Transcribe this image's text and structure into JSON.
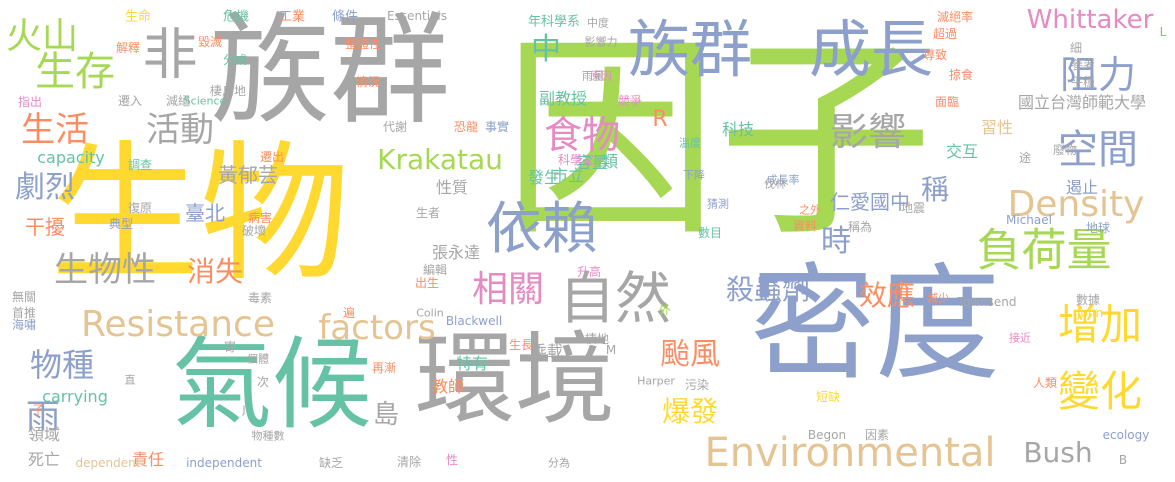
{
  "palette": {
    "gray": "#a6a6a6",
    "yellow": "#ffd92f",
    "green": "#66c2a5",
    "blue": "#8da0cb",
    "lime": "#a6d854",
    "orange": "#fc8d62",
    "pink": "#e78ac3",
    "tan": "#e5c494"
  },
  "words": [
    {
      "text": "因子",
      "color": "lime",
      "weight": 1.0
    },
    {
      "text": "生物",
      "color": "yellow",
      "weight": 0.98
    },
    {
      "text": "族群",
      "color": "gray",
      "weight": 0.96
    },
    {
      "text": "密度",
      "color": "blue",
      "weight": 0.94
    },
    {
      "text": "環境",
      "color": "gray",
      "weight": 0.9
    },
    {
      "text": "氣候",
      "color": "green",
      "weight": 0.9
    },
    {
      "text": "族群",
      "color": "blue",
      "weight": 0.62
    },
    {
      "text": "成長",
      "color": "blue",
      "weight": 0.62
    },
    {
      "text": "非",
      "color": "gray",
      "weight": 0.6
    },
    {
      "text": "依賴",
      "color": "blue",
      "weight": 0.58
    },
    {
      "text": "自然",
      "color": "gray",
      "weight": 0.56
    },
    {
      "text": "負荷量",
      "color": "lime",
      "weight": 0.48
    },
    {
      "text": "空間",
      "color": "blue",
      "weight": 0.46
    },
    {
      "text": "阻力",
      "color": "blue",
      "weight": 0.46
    },
    {
      "text": "增加",
      "color": "yellow",
      "weight": 0.46
    },
    {
      "text": "變化",
      "color": "yellow",
      "weight": 0.46
    },
    {
      "text": "Environmental",
      "color": "tan",
      "weight": 0.46
    },
    {
      "text": "Resistance",
      "color": "tan",
      "weight": 0.44
    },
    {
      "text": "相關",
      "color": "pink",
      "weight": 0.42
    },
    {
      "text": "影響",
      "color": "gray",
      "weight": 0.4
    },
    {
      "text": "食物",
      "color": "pink",
      "weight": 0.4
    },
    {
      "text": "Density",
      "color": "tan",
      "weight": 0.4
    },
    {
      "text": "生存",
      "color": "lime",
      "weight": 0.38
    },
    {
      "text": "火山",
      "color": "lime",
      "weight": 0.38
    },
    {
      "text": "生活",
      "color": "orange",
      "weight": 0.36
    },
    {
      "text": "活動",
      "color": "gray",
      "weight": 0.36
    },
    {
      "text": "生物性",
      "color": "gray",
      "weight": 0.36
    },
    {
      "text": "factors",
      "color": "tan",
      "weight": 0.36
    },
    {
      "text": "Krakatau",
      "color": "lime",
      "weight": 0.34
    },
    {
      "text": "物種",
      "color": "blue",
      "weight": 0.34
    },
    {
      "text": "雨",
      "color": "blue",
      "weight": 0.34
    },
    {
      "text": "颱風",
      "color": "orange",
      "weight": 0.32
    },
    {
      "text": "爆發",
      "color": "yellow",
      "weight": 0.32
    },
    {
      "text": "Bush",
      "color": "gray",
      "weight": 0.32
    },
    {
      "text": "Whittaker",
      "color": "pink",
      "weight": 0.3
    },
    {
      "text": "劇烈",
      "color": "blue",
      "weight": 0.3
    },
    {
      "text": "時",
      "color": "blue",
      "weight": 0.3
    },
    {
      "text": "稱",
      "color": "blue",
      "weight": 0.3
    },
    {
      "text": "中",
      "color": "green",
      "weight": 0.3
    },
    {
      "text": "殺蟲劑",
      "color": "blue",
      "weight": 0.28
    },
    {
      "text": "效應",
      "color": "orange",
      "weight": 0.28
    },
    {
      "text": "消失",
      "color": "orange",
      "weight": 0.26
    },
    {
      "text": "島",
      "color": "gray",
      "weight": 0.24
    },
    {
      "text": "黃郁芸",
      "color": "gray",
      "weight": 0.2
    },
    {
      "text": "干擾",
      "color": "orange",
      "weight": 0.2
    },
    {
      "text": "臺北",
      "color": "blue",
      "weight": 0.2
    },
    {
      "text": "仁愛國中",
      "color": "blue",
      "weight": 0.2
    },
    {
      "text": "R",
      "color": "orange",
      "weight": 0.2
    },
    {
      "text": "科技",
      "color": "green",
      "weight": 0.16
    },
    {
      "text": "教師",
      "color": "orange",
      "weight": 0.16
    },
    {
      "text": "市立",
      "color": "green",
      "weight": 0.16
    },
    {
      "text": "容量",
      "color": "green",
      "weight": 0.16
    },
    {
      "text": "類",
      "color": "green",
      "weight": 0.16
    },
    {
      "text": "發生",
      "color": "green",
      "weight": 0.16
    },
    {
      "text": "副教授",
      "color": "green",
      "weight": 0.16
    },
    {
      "text": "國立台灣師範大學",
      "color": "gray",
      "weight": 0.16
    },
    {
      "text": "習性",
      "color": "tan",
      "weight": 0.16
    },
    {
      "text": "交互",
      "color": "green",
      "weight": 0.16
    },
    {
      "text": "遏止",
      "color": "blue",
      "weight": 0.16
    },
    {
      "text": "領域",
      "color": "gray",
      "weight": 0.16
    },
    {
      "text": "死亡",
      "color": "gray",
      "weight": 0.16
    },
    {
      "text": "責任",
      "color": "orange",
      "weight": 0.16
    },
    {
      "text": "乘載",
      "color": "gray",
      "weight": 0.16
    },
    {
      "text": "張永達",
      "color": "gray",
      "weight": 0.16
    },
    {
      "text": "特有",
      "color": "green",
      "weight": 0.16
    },
    {
      "text": "性質",
      "color": "gray",
      "weight": 0.16
    },
    {
      "text": "capacity",
      "color": "green",
      "weight": 0.16
    },
    {
      "text": "carrying",
      "color": "green",
      "weight": 0.16
    },
    {
      "text": "Essentials",
      "color": "gray",
      "weight": 0.13
    },
    {
      "text": "生命",
      "color": "yellow",
      "weight": 0.13
    },
    {
      "text": "危機",
      "color": "green",
      "weight": 0.13
    },
    {
      "text": "工業",
      "color": "orange",
      "weight": 0.13
    },
    {
      "text": "條件",
      "color": "blue",
      "weight": 0.13
    },
    {
      "text": "年科學系",
      "color": "green",
      "weight": 0.13
    },
    {
      "text": "中度",
      "color": "gray",
      "weight": 0.12
    },
    {
      "text": "影響力",
      "color": "gray",
      "weight": 0.12
    },
    {
      "text": "原因",
      "color": "pink",
      "weight": 0.12
    },
    {
      "text": "雨量",
      "color": "gray",
      "weight": 0.12
    },
    {
      "text": "超過",
      "color": "orange",
      "weight": 0.12
    },
    {
      "text": "導致",
      "color": "orange",
      "weight": 0.12
    },
    {
      "text": "滅絕率",
      "color": "orange",
      "weight": 0.12
    },
    {
      "text": "細",
      "color": "gray",
      "weight": 0.12
    },
    {
      "text": "參考",
      "color": "gray",
      "weight": 0.12
    },
    {
      "text": "平穩",
      "color": "gray",
      "weight": 0.12
    },
    {
      "text": "掠食",
      "color": "orange",
      "weight": 0.12
    },
    {
      "text": "廢物",
      "color": "gray",
      "weight": 0.12
    },
    {
      "text": "面臨",
      "color": "orange",
      "weight": 0.12
    },
    {
      "text": "競爭",
      "color": "pink",
      "weight": 0.12
    },
    {
      "text": "解釋",
      "color": "orange",
      "weight": 0.12
    },
    {
      "text": "毀滅",
      "color": "orange",
      "weight": 0.12
    },
    {
      "text": "整體性",
      "color": "orange",
      "weight": 0.12
    },
    {
      "text": "分成",
      "color": "green",
      "weight": 0.12
    },
    {
      "text": "情況",
      "color": "orange",
      "weight": 0.12
    },
    {
      "text": "棲息地",
      "color": "gray",
      "weight": 0.12
    },
    {
      "text": "遷入",
      "color": "gray",
      "weight": 0.12
    },
    {
      "text": "減絕",
      "color": "gray",
      "weight": 0.12
    },
    {
      "text": "Science",
      "color": "green",
      "weight": 0.12
    },
    {
      "text": "指出",
      "color": "pink",
      "weight": 0.12
    },
    {
      "text": "代謝",
      "color": "gray",
      "weight": 0.12
    },
    {
      "text": "恐龍",
      "color": "orange",
      "weight": 0.12
    },
    {
      "text": "事實",
      "color": "blue",
      "weight": 0.12
    },
    {
      "text": "科學家",
      "color": "pink",
      "weight": 0.12
    },
    {
      "text": "溫度",
      "color": "green",
      "weight": 0.12
    },
    {
      "text": "下降",
      "color": "blue",
      "weight": 0.12
    },
    {
      "text": "成長率",
      "color": "blue",
      "weight": 0.12
    },
    {
      "text": "伐林",
      "color": "gray",
      "weight": 0.12
    },
    {
      "text": "猜測",
      "color": "blue",
      "weight": 0.12
    },
    {
      "text": "數目",
      "color": "green",
      "weight": 0.12
    },
    {
      "text": "調查",
      "color": "green",
      "weight": 0.12
    },
    {
      "text": "遷出",
      "color": "orange",
      "weight": 0.12
    },
    {
      "text": "復原",
      "color": "gray",
      "weight": 0.12
    },
    {
      "text": "病害",
      "color": "orange",
      "weight": 0.12
    },
    {
      "text": "典型",
      "color": "blue",
      "weight": 0.12
    },
    {
      "text": "破壞",
      "color": "gray",
      "weight": 0.12
    },
    {
      "text": "生者",
      "color": "gray",
      "weight": 0.12
    },
    {
      "text": "編輯",
      "color": "gray",
      "weight": 0.12
    },
    {
      "text": "升高",
      "color": "pink",
      "weight": 0.12
    },
    {
      "text": "資料",
      "color": "orange",
      "weight": 0.12
    },
    {
      "text": "稱為",
      "color": "gray",
      "weight": 0.12
    },
    {
      "text": "地震",
      "color": "gray",
      "weight": 0.12
    },
    {
      "text": "Michael",
      "color": "blue",
      "weight": 0.12
    },
    {
      "text": "地球",
      "color": "blue",
      "weight": 0.12
    },
    {
      "text": "途",
      "color": "gray",
      "weight": 0.11
    },
    {
      "text": "之外",
      "color": "orange",
      "weight": 0.12
    },
    {
      "text": "出生",
      "color": "orange",
      "weight": 0.12
    },
    {
      "text": "無關",
      "color": "gray",
      "weight": 0.12
    },
    {
      "text": "首推",
      "color": "gray",
      "weight": 0.12
    },
    {
      "text": "海嘯",
      "color": "blue",
      "weight": 0.12
    },
    {
      "text": "毒素",
      "color": "gray",
      "weight": 0.12
    },
    {
      "text": "遍",
      "color": "orange",
      "weight": 0.12
    },
    {
      "text": "Colin",
      "color": "gray",
      "weight": 0.12
    },
    {
      "text": "Blackwell",
      "color": "blue",
      "weight": 0.12
    },
    {
      "text": "生長",
      "color": "orange",
      "weight": 0.12
    },
    {
      "text": "棲地",
      "color": "gray",
      "weight": 0.12
    },
    {
      "text": "外",
      "color": "lime",
      "weight": 0.12
    },
    {
      "text": "減少",
      "color": "orange",
      "weight": 0.12
    },
    {
      "text": "Townsend",
      "color": "gray",
      "weight": 0.12
    },
    {
      "text": "數據",
      "color": "gray",
      "weight": 0.12
    },
    {
      "text": "John",
      "color": "yellow",
      "weight": 0.12
    },
    {
      "text": "寄",
      "color": "gray",
      "weight": 0.11
    },
    {
      "text": "個體",
      "color": "gray",
      "weight": 0.12
    },
    {
      "text": "再漸",
      "color": "orange",
      "weight": 0.12
    },
    {
      "text": "M",
      "color": "gray",
      "weight": 0.11
    },
    {
      "text": "接近",
      "color": "pink",
      "weight": 0.12
    },
    {
      "text": "次",
      "color": "gray",
      "weight": 0.11
    },
    {
      "text": "直",
      "color": "gray",
      "weight": 0.11
    },
    {
      "text": "Harper",
      "color": "gray",
      "weight": 0.12
    },
    {
      "text": "污染",
      "color": "gray",
      "weight": 0.12
    },
    {
      "text": "人類",
      "color": "orange",
      "weight": 0.12
    },
    {
      "text": "短缺",
      "color": "yellow",
      "weight": 0.12
    },
    {
      "text": "子",
      "color": "orange",
      "weight": 0.11
    },
    {
      "text": "J",
      "color": "gray",
      "weight": 0.11
    },
    {
      "text": "物種數",
      "color": "gray",
      "weight": 0.12
    },
    {
      "text": "Begon",
      "color": "gray",
      "weight": 0.12
    },
    {
      "text": "因素",
      "color": "gray",
      "weight": 0.12
    },
    {
      "text": "ecology",
      "color": "blue",
      "weight": 0.12
    },
    {
      "text": "dependent",
      "color": "tan",
      "weight": 0.12
    },
    {
      "text": "independent",
      "color": "blue",
      "weight": 0.12
    },
    {
      "text": "缺乏",
      "color": "gray",
      "weight": 0.12
    },
    {
      "text": "清除",
      "color": "gray",
      "weight": 0.12
    },
    {
      "text": "性",
      "color": "pink",
      "weight": 0.11
    },
    {
      "text": "分為",
      "color": "gray",
      "weight": 0.12
    },
    {
      "text": "B",
      "color": "gray",
      "weight": 0.11
    },
    {
      "text": "L",
      "color": "orange",
      "weight": 0.11
    }
  ]
}
